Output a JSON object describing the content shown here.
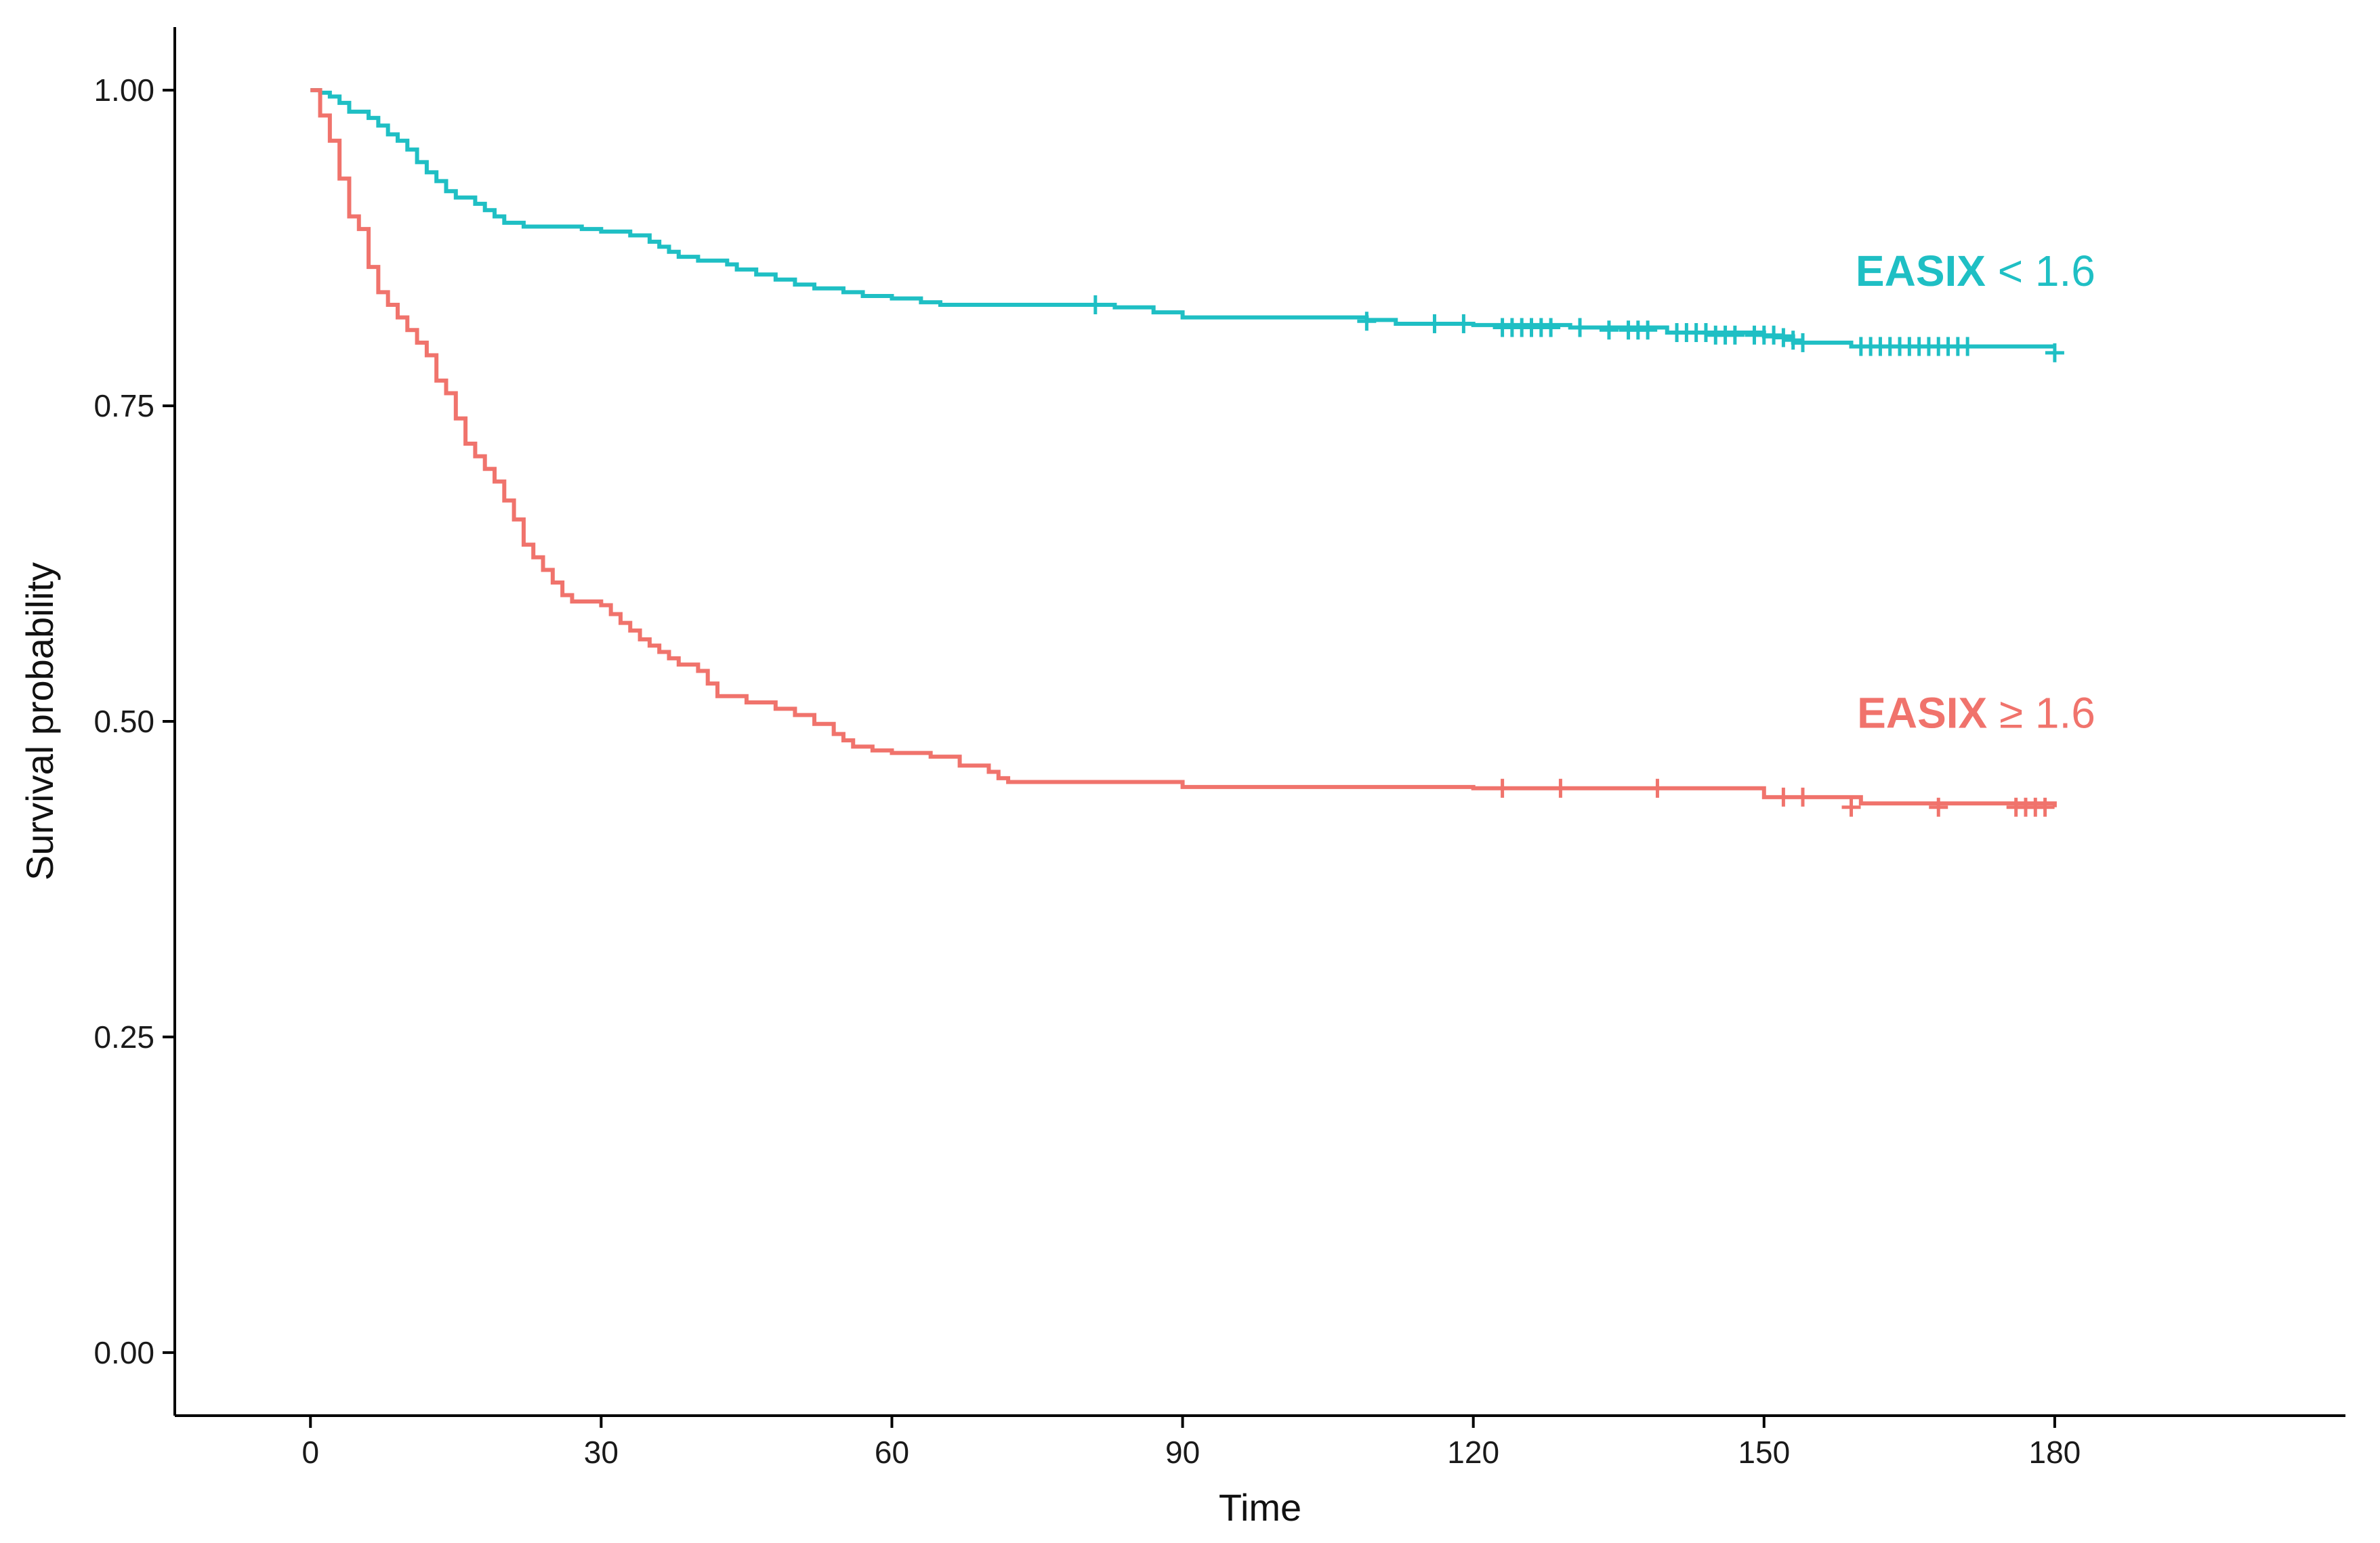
{
  "chart_data": {
    "type": "line",
    "title": "",
    "xlabel": "Time",
    "ylabel": "Survival probability",
    "xlim": [
      -14,
      210
    ],
    "ylim": [
      -0.05,
      1.05
    ],
    "x_ticks": [
      0,
      30,
      60,
      90,
      120,
      150,
      180
    ],
    "y_ticks": [
      {
        "value": 0.0,
        "label": "0.00"
      },
      {
        "value": 0.25,
        "label": "0.25"
      },
      {
        "value": 0.5,
        "label": "0.50"
      },
      {
        "value": 0.75,
        "label": "0.75"
      },
      {
        "value": 1.0,
        "label": "1.00"
      }
    ],
    "grid": false,
    "legend": "none (labels placed at right next to curves)",
    "step": true,
    "series": [
      {
        "label_bold": "EASIX",
        "label_rest": " < 1.6",
        "color": "#1fbfc4",
        "label_anchor": {
          "x": 180,
          "y": 0.845
        },
        "points": [
          [
            0,
            1.0
          ],
          [
            1,
            0.998
          ],
          [
            2,
            0.995
          ],
          [
            3,
            0.99
          ],
          [
            4,
            0.983
          ],
          [
            6,
            0.978
          ],
          [
            7,
            0.972
          ],
          [
            8,
            0.965
          ],
          [
            9,
            0.96
          ],
          [
            10,
            0.953
          ],
          [
            11,
            0.943
          ],
          [
            12,
            0.935
          ],
          [
            13,
            0.928
          ],
          [
            14,
            0.92
          ],
          [
            15,
            0.915
          ],
          [
            17,
            0.91
          ],
          [
            18,
            0.905
          ],
          [
            19,
            0.9
          ],
          [
            20,
            0.895
          ],
          [
            22,
            0.892
          ],
          [
            25,
            0.892
          ],
          [
            28,
            0.89
          ],
          [
            30,
            0.888
          ],
          [
            33,
            0.885
          ],
          [
            35,
            0.88
          ],
          [
            36,
            0.876
          ],
          [
            37,
            0.872
          ],
          [
            38,
            0.868
          ],
          [
            40,
            0.865
          ],
          [
            43,
            0.862
          ],
          [
            44,
            0.858
          ],
          [
            46,
            0.854
          ],
          [
            48,
            0.85
          ],
          [
            50,
            0.846
          ],
          [
            52,
            0.843
          ],
          [
            55,
            0.84
          ],
          [
            57,
            0.837
          ],
          [
            60,
            0.835
          ],
          [
            63,
            0.832
          ],
          [
            65,
            0.83
          ],
          [
            80,
            0.83
          ],
          [
            83,
            0.828
          ],
          [
            87,
            0.824
          ],
          [
            90,
            0.82
          ],
          [
            109,
            0.818
          ],
          [
            112,
            0.815
          ],
          [
            120,
            0.814
          ],
          [
            130,
            0.812
          ],
          [
            140,
            0.808
          ],
          [
            150,
            0.805
          ],
          [
            153,
            0.8
          ],
          [
            159,
            0.797
          ],
          [
            180,
            0.797
          ]
        ],
        "censored": [
          [
            81,
            0.83
          ],
          [
            109,
            0.817
          ],
          [
            116,
            0.815
          ],
          [
            119,
            0.815
          ],
          [
            123,
            0.812
          ],
          [
            124,
            0.812
          ],
          [
            125,
            0.812
          ],
          [
            126,
            0.812
          ],
          [
            127,
            0.812
          ],
          [
            128,
            0.812
          ],
          [
            131,
            0.812
          ],
          [
            134,
            0.81
          ],
          [
            136,
            0.81
          ],
          [
            137,
            0.81
          ],
          [
            138,
            0.81
          ],
          [
            141,
            0.808
          ],
          [
            142,
            0.808
          ],
          [
            143,
            0.808
          ],
          [
            144,
            0.808
          ],
          [
            145,
            0.806
          ],
          [
            146,
            0.806
          ],
          [
            147,
            0.806
          ],
          [
            149,
            0.806
          ],
          [
            150,
            0.806
          ],
          [
            151,
            0.806
          ],
          [
            152,
            0.804
          ],
          [
            153,
            0.802
          ],
          [
            154,
            0.8
          ],
          [
            160,
            0.797
          ],
          [
            161,
            0.797
          ],
          [
            162,
            0.797
          ],
          [
            163,
            0.797
          ],
          [
            164,
            0.797
          ],
          [
            165,
            0.797
          ],
          [
            166,
            0.797
          ],
          [
            167,
            0.797
          ],
          [
            168,
            0.797
          ],
          [
            169,
            0.797
          ],
          [
            170,
            0.797
          ],
          [
            171,
            0.797
          ],
          [
            180,
            0.792
          ]
        ]
      },
      {
        "label_bold": "EASIX",
        "label_rest": " ≥ 1.6",
        "color": "#f0736c",
        "label_anchor": {
          "x": 180,
          "y": 0.495
        },
        "points": [
          [
            0,
            1.0
          ],
          [
            1,
            0.98
          ],
          [
            2,
            0.96
          ],
          [
            3,
            0.93
          ],
          [
            4,
            0.9
          ],
          [
            5,
            0.89
          ],
          [
            6,
            0.86
          ],
          [
            7,
            0.84
          ],
          [
            8,
            0.83
          ],
          [
            9,
            0.82
          ],
          [
            10,
            0.81
          ],
          [
            11,
            0.8
          ],
          [
            12,
            0.79
          ],
          [
            13,
            0.77
          ],
          [
            14,
            0.76
          ],
          [
            15,
            0.74
          ],
          [
            16,
            0.72
          ],
          [
            17,
            0.71
          ],
          [
            18,
            0.7
          ],
          [
            19,
            0.69
          ],
          [
            20,
            0.675
          ],
          [
            21,
            0.66
          ],
          [
            22,
            0.64
          ],
          [
            23,
            0.63
          ],
          [
            24,
            0.62
          ],
          [
            25,
            0.61
          ],
          [
            26,
            0.6
          ],
          [
            27,
            0.595
          ],
          [
            30,
            0.592
          ],
          [
            31,
            0.585
          ],
          [
            32,
            0.578
          ],
          [
            33,
            0.572
          ],
          [
            34,
            0.565
          ],
          [
            35,
            0.56
          ],
          [
            36,
            0.555
          ],
          [
            37,
            0.55
          ],
          [
            38,
            0.545
          ],
          [
            40,
            0.54
          ],
          [
            41,
            0.53
          ],
          [
            42,
            0.52
          ],
          [
            45,
            0.515
          ],
          [
            48,
            0.51
          ],
          [
            50,
            0.505
          ],
          [
            52,
            0.498
          ],
          [
            54,
            0.49
          ],
          [
            55,
            0.485
          ],
          [
            56,
            0.48
          ],
          [
            58,
            0.477
          ],
          [
            60,
            0.475
          ],
          [
            64,
            0.472
          ],
          [
            67,
            0.465
          ],
          [
            70,
            0.46
          ],
          [
            71,
            0.455
          ],
          [
            72,
            0.452
          ],
          [
            90,
            0.448
          ],
          [
            110,
            0.448
          ],
          [
            120,
            0.447
          ],
          [
            140,
            0.447
          ],
          [
            150,
            0.44
          ],
          [
            160,
            0.435
          ],
          [
            180,
            0.432
          ]
        ],
        "censored": [
          [
            123,
            0.447
          ],
          [
            129,
            0.447
          ],
          [
            139,
            0.447
          ],
          [
            152,
            0.44
          ],
          [
            154,
            0.44
          ],
          [
            159,
            0.432
          ],
          [
            168,
            0.432
          ],
          [
            176,
            0.432
          ],
          [
            177,
            0.432
          ],
          [
            178,
            0.432
          ],
          [
            179,
            0.432
          ]
        ]
      }
    ]
  }
}
